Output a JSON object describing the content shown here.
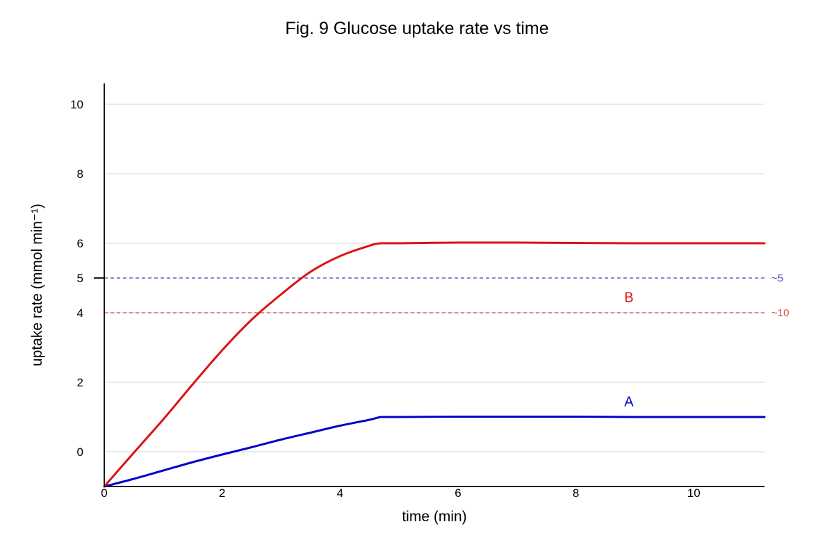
{
  "chart_data": {
    "type": "line",
    "title": "Fig. 9 Glucose uptake rate vs time",
    "xlabel": "time (min)",
    "ylabel": "uptake rate (mmol min⁻¹)",
    "xlim": [
      0,
      11.2
    ],
    "ylim": [
      -1,
      10.6
    ],
    "x_ticks": [
      0,
      2,
      4,
      6,
      8,
      10
    ],
    "y_ticks": [
      0,
      2,
      4,
      5,
      6,
      8,
      10
    ],
    "x_tick_labels": [
      "0",
      "2",
      "4",
      "6",
      "8",
      "10"
    ],
    "y_tick_labels": [
      "0",
      "2",
      "4",
      "5",
      "6",
      "8",
      "10"
    ],
    "grid": true,
    "series": [
      {
        "name": "A",
        "color": "#0000cc",
        "x": [
          0,
          0.5,
          1,
          1.5,
          2,
          2.5,
          3,
          3.5,
          4,
          4.5,
          4.7,
          5,
          6,
          7,
          8,
          9,
          10,
          11.2
        ],
        "y": [
          -1,
          -0.78,
          -0.54,
          -0.3,
          -0.08,
          0.13,
          0.35,
          0.55,
          0.75,
          0.92,
          1.0,
          1.0,
          1.01,
          1.01,
          1.01,
          1.0,
          1.0,
          1.0
        ]
      },
      {
        "name": "B",
        "color": "#dd1111",
        "x": [
          0,
          0.5,
          1,
          1.5,
          2,
          2.5,
          3,
          3.5,
          4,
          4.5,
          4.7,
          5,
          6,
          7,
          8,
          9,
          10,
          11.2
        ],
        "y": [
          -1,
          -0.03,
          0.93,
          1.94,
          2.92,
          3.8,
          4.53,
          5.18,
          5.63,
          5.93,
          6.0,
          6.0,
          6.02,
          6.02,
          6.01,
          6.0,
          6.0,
          6.0
        ]
      }
    ],
    "reference_lines": [
      {
        "y": 5,
        "color": "#4444bb",
        "label": "~5"
      },
      {
        "y": 4,
        "color": "#dd4444",
        "label": "~10"
      }
    ]
  }
}
